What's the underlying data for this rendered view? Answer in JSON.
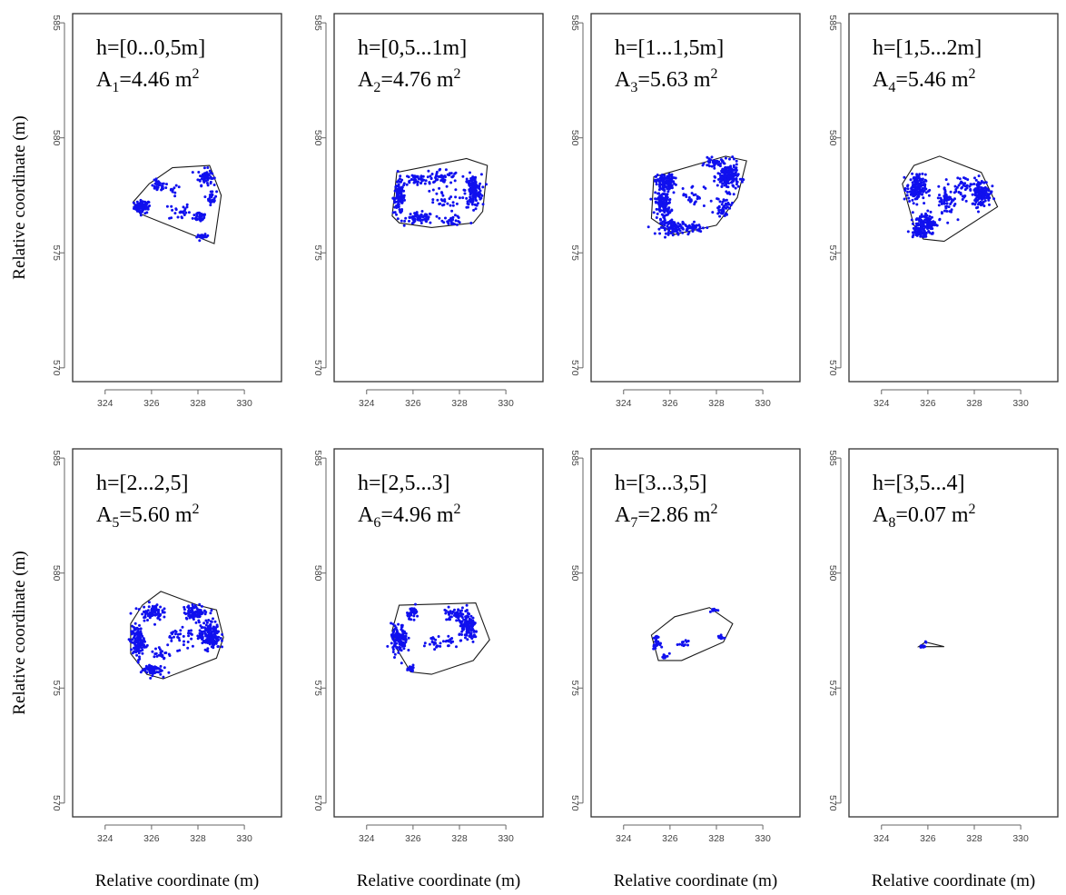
{
  "chart_data": [
    {
      "type": "scatter",
      "annotation": {
        "h_label": "h=[0...0,5m]",
        "area_symbol": "A",
        "area_index": "1",
        "area_value": "=4.46 m",
        "area_unit_exp": "2"
      },
      "hull": [
        [
          325.2,
          577.2
        ],
        [
          325.5,
          576.7
        ],
        [
          328.7,
          575.4
        ],
        [
          329.0,
          577.5
        ],
        [
          328.5,
          578.8
        ],
        [
          326.9,
          578.7
        ],
        [
          325.9,
          578.0
        ]
      ],
      "clusters": [
        [
          325.6,
          577.0,
          0.35,
          0.28,
          70
        ],
        [
          326.3,
          577.9,
          0.3,
          0.25,
          35
        ],
        [
          327.2,
          576.8,
          0.45,
          0.4,
          25
        ],
        [
          328.1,
          576.6,
          0.3,
          0.25,
          35
        ],
        [
          328.3,
          578.3,
          0.3,
          0.35,
          60
        ],
        [
          328.6,
          577.4,
          0.2,
          0.3,
          30
        ],
        [
          328.2,
          575.7,
          0.25,
          0.1,
          20
        ],
        [
          327.0,
          577.8,
          0.4,
          0.3,
          10
        ]
      ]
    },
    {
      "type": "scatter",
      "annotation": {
        "h_label": "h=[0,5...1m]",
        "area_symbol": "A",
        "area_index": "2",
        "area_value": "=4.76 m",
        "area_unit_exp": "2"
      },
      "hull": [
        [
          325.1,
          576.6
        ],
        [
          325.3,
          578.5
        ],
        [
          328.3,
          579.1
        ],
        [
          329.2,
          578.8
        ],
        [
          329.0,
          576.8
        ],
        [
          328.6,
          576.3
        ],
        [
          326.8,
          576.1
        ],
        [
          325.4,
          576.3
        ]
      ],
      "clusters": [
        [
          325.4,
          577.4,
          0.25,
          0.7,
          110
        ],
        [
          326.3,
          576.5,
          0.6,
          0.25,
          70
        ],
        [
          327.7,
          576.4,
          0.4,
          0.2,
          30
        ],
        [
          328.6,
          577.7,
          0.35,
          0.7,
          160
        ],
        [
          327.2,
          578.3,
          0.8,
          0.35,
          55
        ],
        [
          326.1,
          578.2,
          0.5,
          0.25,
          40
        ],
        [
          327.2,
          577.3,
          0.8,
          0.5,
          30
        ]
      ]
    },
    {
      "type": "scatter",
      "annotation": {
        "h_label": "h=[1...1,5m]",
        "area_symbol": "A",
        "area_index": "3",
        "area_value": "=5.63 m",
        "area_unit_exp": "2"
      },
      "hull": [
        [
          325.2,
          576.5
        ],
        [
          325.3,
          578.3
        ],
        [
          328.4,
          579.2
        ],
        [
          329.3,
          579.0
        ],
        [
          328.9,
          577.4
        ],
        [
          328.0,
          576.2
        ],
        [
          326.2,
          575.8
        ]
      ],
      "clusters": [
        [
          325.8,
          578.1,
          0.4,
          0.3,
          110
        ],
        [
          325.7,
          577.2,
          0.35,
          0.7,
          140
        ],
        [
          326.2,
          576.1,
          0.6,
          0.3,
          90
        ],
        [
          327.1,
          576.1,
          0.5,
          0.2,
          35
        ],
        [
          328.5,
          578.3,
          0.45,
          0.6,
          190
        ],
        [
          327.9,
          578.9,
          0.4,
          0.2,
          40
        ],
        [
          328.3,
          577.0,
          0.35,
          0.4,
          45
        ],
        [
          327.0,
          577.5,
          0.5,
          0.5,
          25
        ]
      ]
    },
    {
      "type": "scatter",
      "annotation": {
        "h_label": "h=[1,5...2m]",
        "area_symbol": "A",
        "area_index": "4",
        "area_value": "=5.46 m",
        "area_unit_exp": "2"
      },
      "hull": [
        [
          324.9,
          578.0
        ],
        [
          325.4,
          578.8
        ],
        [
          326.5,
          579.2
        ],
        [
          328.3,
          578.5
        ],
        [
          329.0,
          577.0
        ],
        [
          326.7,
          575.5
        ],
        [
          325.8,
          575.6
        ],
        [
          325.4,
          576.2
        ]
      ],
      "clusters": [
        [
          325.5,
          577.8,
          0.4,
          0.6,
          160
        ],
        [
          325.9,
          576.3,
          0.45,
          0.5,
          120
        ],
        [
          326.8,
          577.2,
          0.35,
          0.7,
          60
        ],
        [
          328.3,
          577.6,
          0.4,
          0.6,
          150
        ],
        [
          327.4,
          577.8,
          0.5,
          0.5,
          45
        ],
        [
          325.7,
          575.9,
          0.35,
          0.25,
          55
        ]
      ]
    },
    {
      "type": "scatter",
      "annotation": {
        "h_label": "h=[2...2,5]",
        "area_symbol": "A",
        "area_index": "5",
        "area_value": "=5.60 m",
        "area_unit_exp": "2"
      },
      "hull": [
        [
          325.1,
          577.8
        ],
        [
          325.6,
          578.6
        ],
        [
          326.4,
          579.2
        ],
        [
          328.0,
          578.6
        ],
        [
          328.8,
          578.4
        ],
        [
          329.1,
          577.2
        ],
        [
          328.8,
          576.3
        ],
        [
          326.5,
          575.4
        ],
        [
          325.8,
          575.6
        ],
        [
          325.1,
          576.5
        ]
      ],
      "clusters": [
        [
          325.4,
          577.0,
          0.3,
          0.7,
          130
        ],
        [
          326.0,
          575.8,
          0.45,
          0.25,
          60
        ],
        [
          328.5,
          577.3,
          0.45,
          0.6,
          180
        ],
        [
          327.9,
          578.3,
          0.5,
          0.3,
          90
        ],
        [
          326.0,
          578.3,
          0.45,
          0.35,
          80
        ],
        [
          327.2,
          577.2,
          0.7,
          0.6,
          35
        ],
        [
          326.4,
          576.5,
          0.3,
          0.3,
          25
        ]
      ]
    },
    {
      "type": "scatter",
      "annotation": {
        "h_label": "h=[2,5...3]",
        "area_symbol": "A",
        "area_index": "6",
        "area_value": "=4.96 m",
        "area_unit_exp": "2"
      },
      "hull": [
        [
          325.1,
          577.5
        ],
        [
          325.4,
          578.6
        ],
        [
          328.7,
          578.7
        ],
        [
          329.3,
          577.1
        ],
        [
          328.6,
          576.2
        ],
        [
          326.8,
          575.6
        ],
        [
          325.9,
          575.7
        ],
        [
          325.3,
          576.7
        ]
      ],
      "clusters": [
        [
          325.4,
          577.1,
          0.35,
          0.65,
          120
        ],
        [
          326.0,
          578.3,
          0.25,
          0.25,
          35
        ],
        [
          328.4,
          577.6,
          0.4,
          0.6,
          120
        ],
        [
          327.8,
          578.2,
          0.5,
          0.3,
          50
        ],
        [
          326.9,
          577.0,
          0.3,
          0.3,
          20
        ],
        [
          325.9,
          575.9,
          0.2,
          0.15,
          25
        ],
        [
          327.6,
          577.0,
          0.3,
          0.2,
          15
        ]
      ]
    },
    {
      "type": "scatter",
      "annotation": {
        "h_label": "h=[3...3,5]",
        "area_symbol": "A",
        "area_index": "7",
        "area_value": "=2.86 m",
        "area_unit_exp": "2"
      },
      "hull": [
        [
          325.2,
          577.3
        ],
        [
          326.2,
          578.1
        ],
        [
          327.7,
          578.5
        ],
        [
          328.7,
          577.8
        ],
        [
          328.3,
          577.0
        ],
        [
          326.5,
          576.2
        ],
        [
          325.5,
          576.2
        ]
      ],
      "clusters": [
        [
          325.4,
          577.0,
          0.15,
          0.25,
          30
        ],
        [
          325.8,
          576.4,
          0.15,
          0.1,
          12
        ],
        [
          326.6,
          576.9,
          0.2,
          0.15,
          12
        ],
        [
          328.2,
          577.2,
          0.15,
          0.1,
          10
        ],
        [
          327.9,
          578.4,
          0.15,
          0.1,
          10
        ]
      ]
    },
    {
      "type": "scatter",
      "annotation": {
        "h_label": "h=[3,5...4]",
        "area_symbol": "A",
        "area_index": "8",
        "area_value": "=0.07 m",
        "area_unit_exp": "2"
      },
      "hull": [
        [
          325.6,
          576.8
        ],
        [
          326.7,
          576.8
        ],
        [
          325.9,
          577.0
        ]
      ],
      "clusters": [
        [
          325.8,
          576.8,
          0.12,
          0.04,
          12
        ],
        [
          325.9,
          577.0,
          0.05,
          0.03,
          3
        ]
      ]
    }
  ],
  "axes": {
    "x_ticks": [
      "324",
      "326",
      "328",
      "330"
    ],
    "y_ticks": [
      "570",
      "575",
      "580",
      "585"
    ],
    "xlim": [
      322.6,
      331.6
    ],
    "ylim": [
      569.4,
      585.4
    ],
    "xlabel": "Relative coordinate (m)",
    "ylabel": "Relative coordinate (m)"
  },
  "colors": {
    "points": "#1010ee",
    "hull": "#1a1a1a"
  }
}
